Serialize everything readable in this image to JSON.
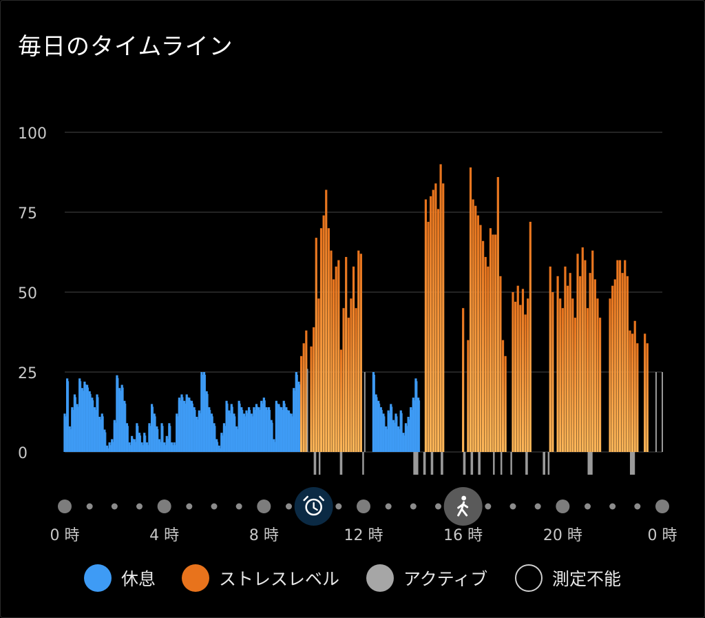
{
  "title": "毎日のタイムライン",
  "colors": {
    "rest": "#3e9bf5",
    "stress_top": "#e8731c",
    "stress_bottom": "#ffb85a",
    "active": "#9a9a9a",
    "unmeasurable": "#cfcfcf",
    "grid": "#3a3a3a",
    "axis_text": "#c8c8c8",
    "background": "#000000"
  },
  "legend": [
    {
      "label": "休息",
      "kind": "rest"
    },
    {
      "label": "ストレスレベル",
      "kind": "stress"
    },
    {
      "label": "アクティブ",
      "kind": "active"
    },
    {
      "label": "測定不能",
      "kind": "unmeasurable"
    }
  ],
  "timeline_icons": [
    {
      "hour": 10,
      "name": "alarm-clock-icon"
    },
    {
      "hour": 16,
      "name": "walking-person-icon"
    }
  ],
  "chart_data": {
    "type": "bar",
    "title": "毎日のタイムライン",
    "xlabel": "",
    "ylabel": "",
    "ylim": [
      0,
      100
    ],
    "y_ticks": [
      0,
      25,
      50,
      75,
      100
    ],
    "x_range_hours": [
      0,
      24
    ],
    "x_tick_labels": [
      "0 時",
      "4 時",
      "8 時",
      "12 時",
      "16 時",
      "20 時",
      "0 時"
    ],
    "x_tick_hours": [
      0,
      4,
      8,
      12,
      16,
      20,
      24
    ],
    "grid": true,
    "legend_position": "bottom",
    "series": [
      {
        "name": "休息",
        "color": "#3e9bf5",
        "points": [
          [
            0.0,
            12
          ],
          [
            0.1,
            23
          ],
          [
            0.2,
            8
          ],
          [
            0.3,
            14
          ],
          [
            0.4,
            18
          ],
          [
            0.5,
            15
          ],
          [
            0.6,
            23
          ],
          [
            0.7,
            20
          ],
          [
            0.8,
            22
          ],
          [
            0.9,
            21
          ],
          [
            1.0,
            19
          ],
          [
            1.1,
            17
          ],
          [
            1.2,
            14
          ],
          [
            1.3,
            18
          ],
          [
            1.4,
            11
          ],
          [
            1.5,
            12
          ],
          [
            1.6,
            7
          ],
          [
            1.7,
            2
          ],
          [
            1.8,
            3
          ],
          [
            1.9,
            4
          ],
          [
            2.0,
            10
          ],
          [
            2.1,
            24
          ],
          [
            2.2,
            20
          ],
          [
            2.3,
            21
          ],
          [
            2.4,
            16
          ],
          [
            2.5,
            9
          ],
          [
            2.6,
            3
          ],
          [
            2.7,
            5
          ],
          [
            2.8,
            4
          ],
          [
            2.9,
            9
          ],
          [
            3.0,
            6
          ],
          [
            3.1,
            3
          ],
          [
            3.2,
            6
          ],
          [
            3.3,
            3
          ],
          [
            3.4,
            9
          ],
          [
            3.5,
            15
          ],
          [
            3.6,
            12
          ],
          [
            3.7,
            8
          ],
          [
            3.8,
            4
          ],
          [
            3.9,
            9
          ],
          [
            4.0,
            3
          ],
          [
            4.1,
            5
          ],
          [
            4.2,
            9
          ],
          [
            4.3,
            3
          ],
          [
            4.4,
            3
          ],
          [
            4.5,
            12
          ],
          [
            4.6,
            17
          ],
          [
            4.7,
            18
          ],
          [
            4.8,
            16
          ],
          [
            4.9,
            18
          ],
          [
            5.0,
            17
          ],
          [
            5.1,
            16
          ],
          [
            5.2,
            14
          ],
          [
            5.3,
            11
          ],
          [
            5.4,
            13
          ],
          [
            5.5,
            25
          ],
          [
            5.6,
            25
          ],
          [
            5.7,
            19
          ],
          [
            5.8,
            14
          ],
          [
            5.9,
            12
          ],
          [
            6.0,
            9
          ],
          [
            6.1,
            4
          ],
          [
            6.2,
            2
          ],
          [
            6.3,
            6
          ],
          [
            6.4,
            9
          ],
          [
            6.5,
            16
          ],
          [
            6.6,
            13
          ],
          [
            6.7,
            15
          ],
          [
            6.8,
            12
          ],
          [
            6.9,
            8
          ],
          [
            7.0,
            16
          ],
          [
            7.1,
            14
          ],
          [
            7.2,
            12
          ],
          [
            7.3,
            13
          ],
          [
            7.4,
            14
          ],
          [
            7.5,
            12
          ],
          [
            7.6,
            14
          ],
          [
            7.7,
            15
          ],
          [
            7.8,
            14
          ],
          [
            7.9,
            16
          ],
          [
            8.0,
            17
          ],
          [
            8.1,
            14
          ],
          [
            8.2,
            14
          ],
          [
            8.3,
            10
          ],
          [
            8.4,
            4
          ],
          [
            8.5,
            16
          ],
          [
            8.6,
            15
          ],
          [
            8.7,
            14
          ],
          [
            8.8,
            16
          ],
          [
            8.9,
            14
          ],
          [
            9.0,
            13
          ],
          [
            9.1,
            12
          ],
          [
            9.2,
            20
          ],
          [
            9.3,
            25
          ],
          [
            9.4,
            22
          ],
          [
            12.4,
            25
          ],
          [
            12.5,
            18
          ],
          [
            12.6,
            16
          ],
          [
            12.7,
            14
          ],
          [
            12.8,
            12
          ],
          [
            12.9,
            8
          ],
          [
            13.0,
            13
          ],
          [
            13.1,
            15
          ],
          [
            13.2,
            10
          ],
          [
            13.3,
            12
          ],
          [
            13.4,
            8
          ],
          [
            13.5,
            13
          ],
          [
            13.6,
            6
          ],
          [
            13.7,
            9
          ],
          [
            13.8,
            11
          ],
          [
            13.9,
            14
          ],
          [
            14.0,
            17
          ],
          [
            14.1,
            23
          ],
          [
            14.2,
            17
          ]
        ]
      },
      {
        "name": "ストレスレベル",
        "color": "#e8731c",
        "points": [
          [
            9.5,
            30
          ],
          [
            9.6,
            34
          ],
          [
            9.7,
            38
          ],
          [
            9.9,
            33
          ],
          [
            10.0,
            39
          ],
          [
            10.1,
            67
          ],
          [
            10.2,
            48
          ],
          [
            10.3,
            70
          ],
          [
            10.4,
            74
          ],
          [
            10.5,
            82
          ],
          [
            10.6,
            70
          ],
          [
            10.7,
            63
          ],
          [
            10.8,
            54
          ],
          [
            10.9,
            58
          ],
          [
            11.0,
            60
          ],
          [
            11.1,
            32
          ],
          [
            11.2,
            45
          ],
          [
            11.3,
            61
          ],
          [
            11.4,
            42
          ],
          [
            11.5,
            48
          ],
          [
            11.6,
            58
          ],
          [
            11.7,
            45
          ],
          [
            11.8,
            63
          ],
          [
            11.9,
            62
          ],
          [
            14.5,
            79
          ],
          [
            14.6,
            72
          ],
          [
            14.7,
            80
          ],
          [
            14.8,
            82
          ],
          [
            14.9,
            84
          ],
          [
            15.0,
            76
          ],
          [
            15.1,
            90
          ],
          [
            15.2,
            84
          ],
          [
            16.0,
            45
          ],
          [
            16.2,
            35
          ],
          [
            16.3,
            89
          ],
          [
            16.4,
            79
          ],
          [
            16.5,
            77
          ],
          [
            16.6,
            74
          ],
          [
            16.7,
            71
          ],
          [
            16.8,
            66
          ],
          [
            16.9,
            61
          ],
          [
            17.0,
            58
          ],
          [
            17.1,
            70
          ],
          [
            17.2,
            68
          ],
          [
            17.3,
            68
          ],
          [
            17.4,
            86
          ],
          [
            17.5,
            55
          ],
          [
            17.6,
            35
          ],
          [
            17.7,
            30
          ],
          [
            18.0,
            50
          ],
          [
            18.1,
            47
          ],
          [
            18.2,
            52
          ],
          [
            18.3,
            46
          ],
          [
            18.4,
            51
          ],
          [
            18.5,
            43
          ],
          [
            18.6,
            48
          ],
          [
            18.7,
            72
          ],
          [
            19.5,
            58
          ],
          [
            19.6,
            50
          ],
          [
            19.8,
            55
          ],
          [
            19.9,
            48
          ],
          [
            20.0,
            45
          ],
          [
            20.1,
            58
          ],
          [
            20.2,
            52
          ],
          [
            20.3,
            56
          ],
          [
            20.4,
            48
          ],
          [
            20.5,
            42
          ],
          [
            20.6,
            62
          ],
          [
            20.7,
            55
          ],
          [
            20.8,
            64
          ],
          [
            20.9,
            60
          ],
          [
            21.0,
            45
          ],
          [
            21.1,
            56
          ],
          [
            21.2,
            63
          ],
          [
            21.3,
            54
          ],
          [
            21.4,
            48
          ],
          [
            21.5,
            42
          ],
          [
            21.9,
            48
          ],
          [
            22.0,
            52
          ],
          [
            22.1,
            54
          ],
          [
            22.2,
            60
          ],
          [
            22.3,
            60
          ],
          [
            22.4,
            56
          ],
          [
            22.5,
            60
          ],
          [
            22.6,
            55
          ],
          [
            22.7,
            38
          ],
          [
            22.8,
            37
          ],
          [
            22.9,
            41
          ],
          [
            23.0,
            34
          ],
          [
            23.3,
            37
          ],
          [
            23.4,
            34
          ]
        ]
      },
      {
        "name": "アクティブ",
        "color": "#9a9a9a",
        "points": [
          [
            9.75,
            26
          ],
          [
            12.05,
            25
          ],
          [
            23.75,
            25
          ],
          [
            24.0,
            25
          ]
        ]
      }
    ],
    "lower_markers": {
      "name": "アクティブ",
      "color": "#9a9a9a",
      "intervals_hours": [
        [
          10.0,
          10.1
        ],
        [
          10.2,
          10.25
        ],
        [
          11.05,
          11.15
        ],
        [
          11.95,
          12.0
        ],
        [
          14.0,
          14.2
        ],
        [
          14.4,
          14.5
        ],
        [
          14.7,
          14.8
        ],
        [
          15.1,
          15.2
        ],
        [
          16.0,
          16.1
        ],
        [
          16.3,
          16.4
        ],
        [
          16.6,
          16.7
        ],
        [
          17.2,
          17.25
        ],
        [
          17.5,
          17.55
        ],
        [
          17.9,
          17.95
        ],
        [
          18.5,
          18.6
        ],
        [
          19.2,
          19.3
        ],
        [
          19.4,
          19.45
        ],
        [
          21.0,
          21.2
        ],
        [
          22.7,
          22.9
        ]
      ],
      "value": 6
    }
  }
}
